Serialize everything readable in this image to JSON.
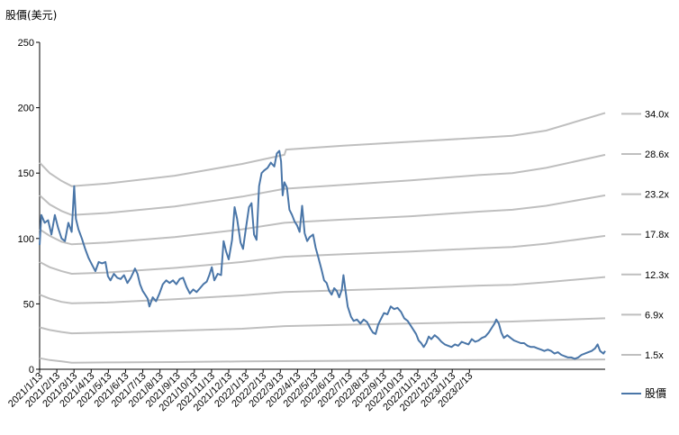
{
  "chart_data": {
    "type": "line",
    "title": "",
    "ylabel": "股價(美元)",
    "xlabel": "",
    "ylim": [
      0,
      250
    ],
    "y_ticks": [
      0,
      50,
      100,
      150,
      200,
      250
    ],
    "grid": false,
    "legend_position": "right",
    "x_tick_labels": [
      "2021/1/13",
      "2021/2/13",
      "2021/3/13",
      "2021/4/13",
      "2021/5/13",
      "2021/6/13",
      "2021/7/13",
      "2021/8/13",
      "2021/9/13",
      "2021/10/13",
      "2021/11/13",
      "2021/12/13",
      "2022/1/13",
      "2022/2/13",
      "2022/3/13",
      "2022/4/13",
      "2022/5/13",
      "2022/6/13",
      "2022/7/13",
      "2022/8/13",
      "2022/9/13",
      "2022/10/13",
      "2022/11/13",
      "2022/12/13",
      "2023/1/13",
      "2023/2/13"
    ],
    "series_price": {
      "name": "股價",
      "color": "#4a76a8",
      "points": [
        [
          0,
          95
        ],
        [
          0.1,
          118
        ],
        [
          0.3,
          112
        ],
        [
          0.5,
          114
        ],
        [
          0.7,
          103
        ],
        [
          0.9,
          118
        ],
        [
          1.1,
          108
        ],
        [
          1.3,
          100
        ],
        [
          1.5,
          98
        ],
        [
          1.7,
          112
        ],
        [
          1.9,
          105
        ],
        [
          2.05,
          140
        ],
        [
          2.15,
          115
        ],
        [
          2.3,
          107
        ],
        [
          2.5,
          100
        ],
        [
          2.7,
          92
        ],
        [
          2.9,
          85
        ],
        [
          3.1,
          80
        ],
        [
          3.3,
          75
        ],
        [
          3.5,
          82
        ],
        [
          3.7,
          81
        ],
        [
          3.9,
          82
        ],
        [
          4.05,
          71
        ],
        [
          4.2,
          68
        ],
        [
          4.4,
          73
        ],
        [
          4.6,
          70
        ],
        [
          4.8,
          69
        ],
        [
          5.0,
          72
        ],
        [
          5.2,
          66
        ],
        [
          5.4,
          70
        ],
        [
          5.55,
          74
        ],
        [
          5.65,
          77
        ],
        [
          5.8,
          73
        ],
        [
          5.95,
          65
        ],
        [
          6.1,
          60
        ],
        [
          6.25,
          57
        ],
        [
          6.4,
          54
        ],
        [
          6.5,
          48
        ],
        [
          6.7,
          55
        ],
        [
          6.9,
          52
        ],
        [
          7.1,
          58
        ],
        [
          7.3,
          65
        ],
        [
          7.5,
          68
        ],
        [
          7.7,
          66
        ],
        [
          7.9,
          68
        ],
        [
          8.1,
          65
        ],
        [
          8.3,
          69
        ],
        [
          8.5,
          70
        ],
        [
          8.7,
          63
        ],
        [
          8.9,
          58
        ],
        [
          9.1,
          61
        ],
        [
          9.3,
          59
        ],
        [
          9.5,
          62
        ],
        [
          9.7,
          65
        ],
        [
          9.9,
          67
        ],
        [
          10.05,
          72
        ],
        [
          10.2,
          78
        ],
        [
          10.35,
          68
        ],
        [
          10.55,
          73
        ],
        [
          10.75,
          72
        ],
        [
          10.9,
          98
        ],
        [
          11.05,
          90
        ],
        [
          11.2,
          84
        ],
        [
          11.4,
          99
        ],
        [
          11.55,
          124
        ],
        [
          11.7,
          115
        ],
        [
          11.9,
          97
        ],
        [
          12.05,
          92
        ],
        [
          12.2,
          106
        ],
        [
          12.4,
          124
        ],
        [
          12.55,
          127
        ],
        [
          12.7,
          103
        ],
        [
          12.85,
          99
        ],
        [
          13.0,
          140
        ],
        [
          13.15,
          150
        ],
        [
          13.3,
          152
        ],
        [
          13.5,
          154
        ],
        [
          13.7,
          158
        ],
        [
          13.9,
          155
        ],
        [
          14.05,
          165
        ],
        [
          14.2,
          167
        ],
        [
          14.3,
          159
        ],
        [
          14.4,
          133
        ],
        [
          14.5,
          143
        ],
        [
          14.65,
          139
        ],
        [
          14.8,
          122
        ],
        [
          14.95,
          118
        ],
        [
          15.1,
          113
        ],
        [
          15.25,
          110
        ],
        [
          15.4,
          105
        ],
        [
          15.55,
          125
        ],
        [
          15.7,
          104
        ],
        [
          15.85,
          98
        ],
        [
          16.0,
          101
        ],
        [
          16.2,
          103
        ],
        [
          16.35,
          93
        ],
        [
          16.5,
          86
        ],
        [
          16.7,
          76
        ],
        [
          16.85,
          68
        ],
        [
          17.0,
          66
        ],
        [
          17.15,
          60
        ],
        [
          17.3,
          57
        ],
        [
          17.45,
          62
        ],
        [
          17.6,
          60
        ],
        [
          17.75,
          55
        ],
        [
          17.9,
          61
        ],
        [
          18.0,
          72
        ],
        [
          18.1,
          62
        ],
        [
          18.25,
          48
        ],
        [
          18.45,
          40
        ],
        [
          18.6,
          37
        ],
        [
          18.8,
          38
        ],
        [
          19.0,
          35
        ],
        [
          19.2,
          38
        ],
        [
          19.4,
          36
        ],
        [
          19.6,
          31
        ],
        [
          19.75,
          28
        ],
        [
          19.9,
          27
        ],
        [
          20.05,
          34
        ],
        [
          20.2,
          38
        ],
        [
          20.4,
          43
        ],
        [
          20.6,
          42
        ],
        [
          20.8,
          48
        ],
        [
          21.0,
          46
        ],
        [
          21.2,
          47
        ],
        [
          21.4,
          44
        ],
        [
          21.6,
          39
        ],
        [
          21.8,
          37
        ],
        [
          22.0,
          33
        ],
        [
          22.15,
          30
        ],
        [
          22.3,
          27
        ],
        [
          22.45,
          22
        ],
        [
          22.6,
          20
        ],
        [
          22.75,
          17
        ],
        [
          22.9,
          20
        ],
        [
          23.05,
          25
        ],
        [
          23.2,
          23
        ],
        [
          23.4,
          26
        ],
        [
          23.6,
          24
        ],
        [
          23.8,
          21
        ],
        [
          24.0,
          19
        ],
        [
          24.2,
          18
        ],
        [
          24.4,
          17
        ],
        [
          24.6,
          19
        ],
        [
          24.8,
          18
        ],
        [
          25.0,
          21
        ],
        [
          25.2,
          20
        ],
        [
          25.4,
          19
        ],
        [
          25.6,
          23
        ],
        [
          25.8,
          21
        ],
        [
          26.0,
          22
        ],
        [
          26.2,
          24
        ],
        [
          26.4,
          25
        ],
        [
          26.6,
          28
        ],
        [
          26.8,
          32
        ],
        [
          26.95,
          35
        ],
        [
          27.05,
          38
        ],
        [
          27.2,
          35
        ],
        [
          27.35,
          28
        ],
        [
          27.5,
          24
        ],
        [
          27.7,
          26
        ],
        [
          27.9,
          24
        ],
        [
          28.1,
          22
        ],
        [
          28.3,
          21
        ],
        [
          28.5,
          20
        ],
        [
          28.7,
          20
        ],
        [
          28.9,
          18
        ],
        [
          29.1,
          17
        ],
        [
          29.3,
          17
        ],
        [
          29.5,
          16
        ],
        [
          29.7,
          15
        ],
        [
          29.9,
          14
        ],
        [
          30.1,
          15
        ],
        [
          30.3,
          14
        ],
        [
          30.5,
          12
        ],
        [
          30.7,
          13
        ],
        [
          30.9,
          11
        ],
        [
          31.1,
          10
        ],
        [
          31.3,
          9
        ],
        [
          31.5,
          9
        ],
        [
          31.7,
          8
        ],
        [
          31.9,
          9
        ],
        [
          32.1,
          11
        ],
        [
          32.3,
          12
        ],
        [
          32.5,
          13
        ],
        [
          32.7,
          14
        ],
        [
          32.9,
          16
        ],
        [
          33.05,
          19
        ],
        [
          33.2,
          14
        ],
        [
          33.4,
          12
        ],
        [
          33.5,
          14
        ]
      ]
    },
    "pe_bands": [
      {
        "label": "1.5x",
        "points": [
          [
            0,
            8.5
          ],
          [
            0.6,
            7.0
          ],
          [
            1.3,
            6.0
          ],
          [
            1.9,
            5.0
          ],
          [
            4,
            5.2
          ],
          [
            8,
            5.5
          ],
          [
            12,
            6.0
          ],
          [
            14.5,
            6.2
          ],
          [
            18,
            6.5
          ],
          [
            22,
            6.8
          ],
          [
            26,
            7.0
          ],
          [
            30,
            7.2
          ],
          [
            33.5,
            7.5
          ]
        ]
      },
      {
        "label": "6.9x",
        "points": [
          [
            0,
            32
          ],
          [
            0.6,
            30
          ],
          [
            1.3,
            28.5
          ],
          [
            1.9,
            27.5
          ],
          [
            4,
            28
          ],
          [
            8,
            29.5
          ],
          [
            12,
            31
          ],
          [
            14.5,
            33
          ],
          [
            18,
            34
          ],
          [
            22,
            35
          ],
          [
            26,
            36
          ],
          [
            28,
            36.5
          ],
          [
            30,
            37.5
          ],
          [
            33.5,
            39
          ]
        ]
      },
      {
        "label": "12.3x",
        "points": [
          [
            0,
            57
          ],
          [
            0.6,
            54
          ],
          [
            1.3,
            51.5
          ],
          [
            1.9,
            50.5
          ],
          [
            4,
            51
          ],
          [
            8,
            53.5
          ],
          [
            12,
            56.5
          ],
          [
            14.5,
            59
          ],
          [
            18,
            60.5
          ],
          [
            22,
            62
          ],
          [
            26,
            64
          ],
          [
            28,
            64.5
          ],
          [
            30,
            66.5
          ],
          [
            33.5,
            70.5
          ]
        ]
      },
      {
        "label": "17.8x",
        "points": [
          [
            0,
            82
          ],
          [
            0.6,
            78
          ],
          [
            1.3,
            75
          ],
          [
            1.9,
            73
          ],
          [
            4,
            74
          ],
          [
            8,
            77.5
          ],
          [
            12,
            82
          ],
          [
            14.5,
            86
          ],
          [
            18,
            88
          ],
          [
            22,
            90
          ],
          [
            26,
            92.5
          ],
          [
            28,
            93.5
          ],
          [
            30,
            96
          ],
          [
            33.5,
            102
          ]
        ]
      },
      {
        "label": "23.2x",
        "points": [
          [
            0,
            107
          ],
          [
            0.6,
            102
          ],
          [
            1.3,
            97.5
          ],
          [
            1.9,
            95.5
          ],
          [
            4,
            97
          ],
          [
            8,
            101
          ],
          [
            12,
            107
          ],
          [
            14.5,
            112
          ],
          [
            18,
            114.5
          ],
          [
            22,
            117
          ],
          [
            26,
            120.5
          ],
          [
            28,
            122
          ],
          [
            30,
            125
          ],
          [
            33.5,
            133
          ]
        ]
      },
      {
        "label": "28.6x",
        "points": [
          [
            0,
            133
          ],
          [
            0.6,
            126
          ],
          [
            1.3,
            121
          ],
          [
            1.9,
            118
          ],
          [
            4,
            119.5
          ],
          [
            8,
            124.5
          ],
          [
            12,
            132
          ],
          [
            14.5,
            138
          ],
          [
            18,
            141
          ],
          [
            22,
            144.5
          ],
          [
            26,
            148.5
          ],
          [
            28,
            150
          ],
          [
            30,
            154
          ],
          [
            33.5,
            164
          ]
        ]
      },
      {
        "label": "34.0x",
        "points": [
          [
            0,
            158
          ],
          [
            0.6,
            150
          ],
          [
            1.3,
            144
          ],
          [
            1.9,
            140
          ],
          [
            4,
            142
          ],
          [
            8,
            148
          ],
          [
            12,
            157
          ],
          [
            14.5,
            164
          ],
          [
            14.6,
            168
          ],
          [
            18,
            171
          ],
          [
            22,
            174
          ],
          [
            26,
            177
          ],
          [
            28,
            178.5
          ],
          [
            30,
            182.5
          ],
          [
            33.5,
            196
          ]
        ]
      }
    ],
    "band_color": "#bfbfbf"
  }
}
